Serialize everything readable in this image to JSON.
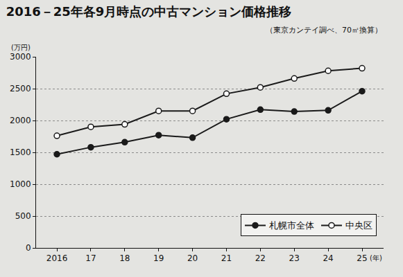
{
  "chart_data": {
    "type": "line",
    "title": "2016－25年各9月時点の中古マンション価格推移",
    "subtitle": "（東京カンテイ調べ、70㎡換算）",
    "y_label": "(万円)",
    "x_label": "(年)",
    "categories": [
      "2016",
      "17",
      "18",
      "19",
      "20",
      "21",
      "22",
      "23",
      "24",
      "25"
    ],
    "series": [
      {
        "name": "札幌市全体",
        "color": "#1a1a1a",
        "marker": "filled_circle",
        "line_style": "solid",
        "values": [
          1470,
          1580,
          1660,
          1770,
          1730,
          2020,
          2170,
          2140,
          2160,
          2460
        ]
      },
      {
        "name": "中央区",
        "color": "#1a1a1a",
        "marker": "open_circle",
        "line_style": "solid",
        "values": [
          1760,
          1900,
          1940,
          2150,
          2150,
          2420,
          2520,
          2660,
          2780,
          2820
        ]
      }
    ],
    "ylim": [
      0,
      3000
    ],
    "yticks": [
      0,
      500,
      1000,
      1500,
      2000,
      2500,
      3000
    ],
    "grid": true,
    "legend": "bottom right"
  }
}
